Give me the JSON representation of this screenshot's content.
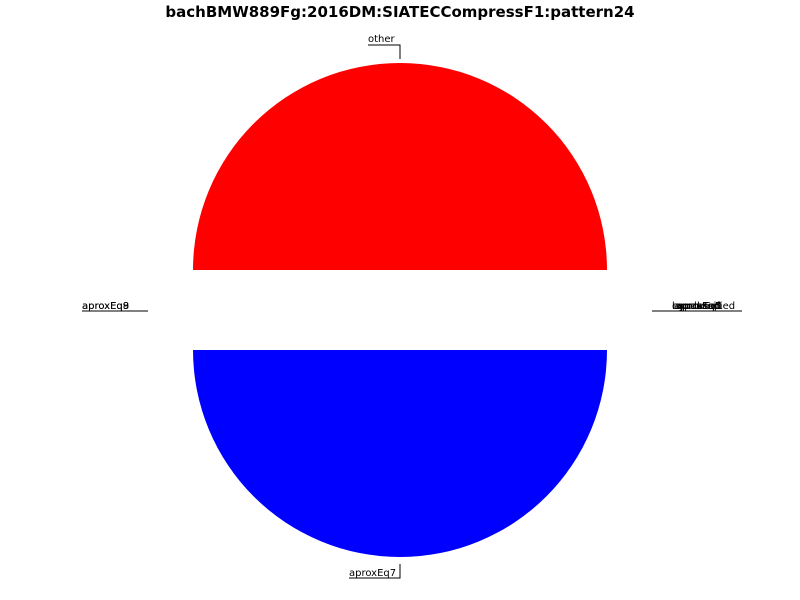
{
  "chart_data": {
    "type": "pie",
    "title": "bachBMW889Fg:2016DM:SIATECCompressF1:pattern24",
    "slices": [
      {
        "label": "other",
        "value": 0.5,
        "color": "#ff0000"
      },
      {
        "label": "aproxEq7",
        "value": 0.5,
        "color": "#0000ff"
      },
      {
        "label": "aproxEq8",
        "value": 0,
        "color": "#000000"
      },
      {
        "label": "aproxEq9",
        "value": 0,
        "color": "#000000"
      }
    ],
    "stacked_right_labels": [
      "bypassed",
      "aproxEq5",
      "unclassified",
      "equal",
      "aproxEq0",
      "aproxEq1"
    ],
    "stacked_left_labels": [
      "aproxEq8",
      "aproxEq9"
    ],
    "legend": "none",
    "grid": false
  }
}
